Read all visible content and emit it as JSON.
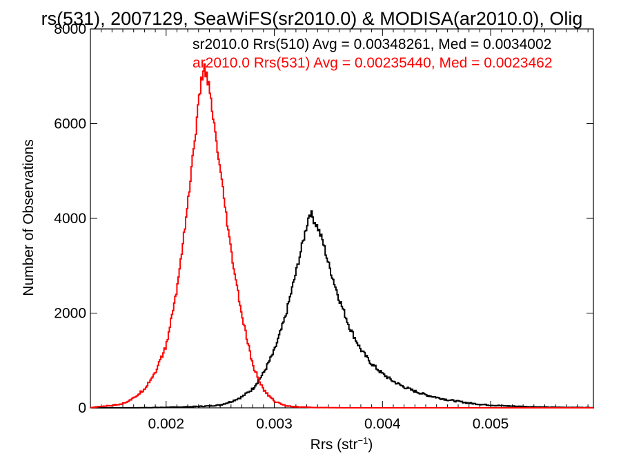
{
  "chart_data": {
    "type": "line",
    "title": "rs(531), 2007129, SeaWiFS(sr2010.0) & MODISA(ar2010.0), Olig",
    "xlabel": "Rrs (str",
    "xlabel_sup": "−1",
    "xlabel_close": ")",
    "ylabel": "Number of Observations",
    "xlim": [
      0.0013,
      0.00595
    ],
    "ylim": [
      0,
      8000
    ],
    "xticks": {
      "values": [
        0.002,
        0.003,
        0.004,
        0.005
      ],
      "labels": [
        "0.002",
        "0.003",
        "0.004",
        "0.005"
      ]
    },
    "yticks": {
      "values": [
        0,
        2000,
        4000,
        6000,
        8000
      ],
      "labels": [
        "0",
        "2000",
        "4000",
        "6000",
        "8000"
      ]
    },
    "grid": false,
    "legend_placement": "top-right",
    "series": [
      {
        "name": "sr2010.0 Rrs(510) Avg = 0.00348261, Med = 0.0034002",
        "color": "#000000",
        "points": [
          [
            0.0013,
            0
          ],
          [
            0.0017,
            0
          ],
          [
            0.002,
            10
          ],
          [
            0.0022,
            20
          ],
          [
            0.0024,
            40
          ],
          [
            0.0025,
            60
          ],
          [
            0.0026,
            130
          ],
          [
            0.0027,
            230
          ],
          [
            0.0028,
            400
          ],
          [
            0.0029,
            730
          ],
          [
            0.003,
            1200
          ],
          [
            0.0031,
            1900
          ],
          [
            0.0032,
            2850
          ],
          [
            0.00325,
            3350
          ],
          [
            0.0033,
            3850
          ],
          [
            0.00333,
            4150
          ],
          [
            0.00337,
            3950
          ],
          [
            0.0034,
            3820
          ],
          [
            0.00345,
            3500
          ],
          [
            0.0035,
            3050
          ],
          [
            0.0036,
            2300
          ],
          [
            0.0037,
            1680
          ],
          [
            0.0038,
            1230
          ],
          [
            0.0039,
            930
          ],
          [
            0.004,
            720
          ],
          [
            0.0041,
            560
          ],
          [
            0.0042,
            440
          ],
          [
            0.0043,
            350
          ],
          [
            0.0044,
            275
          ],
          [
            0.0045,
            220
          ],
          [
            0.0046,
            170
          ],
          [
            0.0047,
            135
          ],
          [
            0.0048,
            100
          ],
          [
            0.0049,
            75
          ],
          [
            0.005,
            55
          ],
          [
            0.0052,
            35
          ],
          [
            0.0054,
            20
          ],
          [
            0.0056,
            10
          ],
          [
            0.00595,
            5
          ]
        ]
      },
      {
        "name": "ar2010.0 Rrs(531) Avg = 0.00235440, Med = 0.0023462",
        "color": "#ff0000",
        "points": [
          [
            0.0013,
            0
          ],
          [
            0.0014,
            30
          ],
          [
            0.0015,
            50
          ],
          [
            0.0016,
            90
          ],
          [
            0.0017,
            200
          ],
          [
            0.0018,
            400
          ],
          [
            0.0019,
            750
          ],
          [
            0.002,
            1300
          ],
          [
            0.0021,
            2500
          ],
          [
            0.0022,
            4300
          ],
          [
            0.0023,
            6400
          ],
          [
            0.00232,
            6800
          ],
          [
            0.00235,
            7200
          ],
          [
            0.00238,
            7000
          ],
          [
            0.0024,
            6700
          ],
          [
            0.0025,
            5000
          ],
          [
            0.0026,
            3300
          ],
          [
            0.0027,
            1950
          ],
          [
            0.0028,
            900
          ],
          [
            0.0029,
            380
          ],
          [
            0.003,
            140
          ],
          [
            0.0031,
            50
          ],
          [
            0.0032,
            20
          ],
          [
            0.0034,
            5
          ],
          [
            0.0038,
            0
          ],
          [
            0.00595,
            0
          ]
        ]
      }
    ]
  }
}
